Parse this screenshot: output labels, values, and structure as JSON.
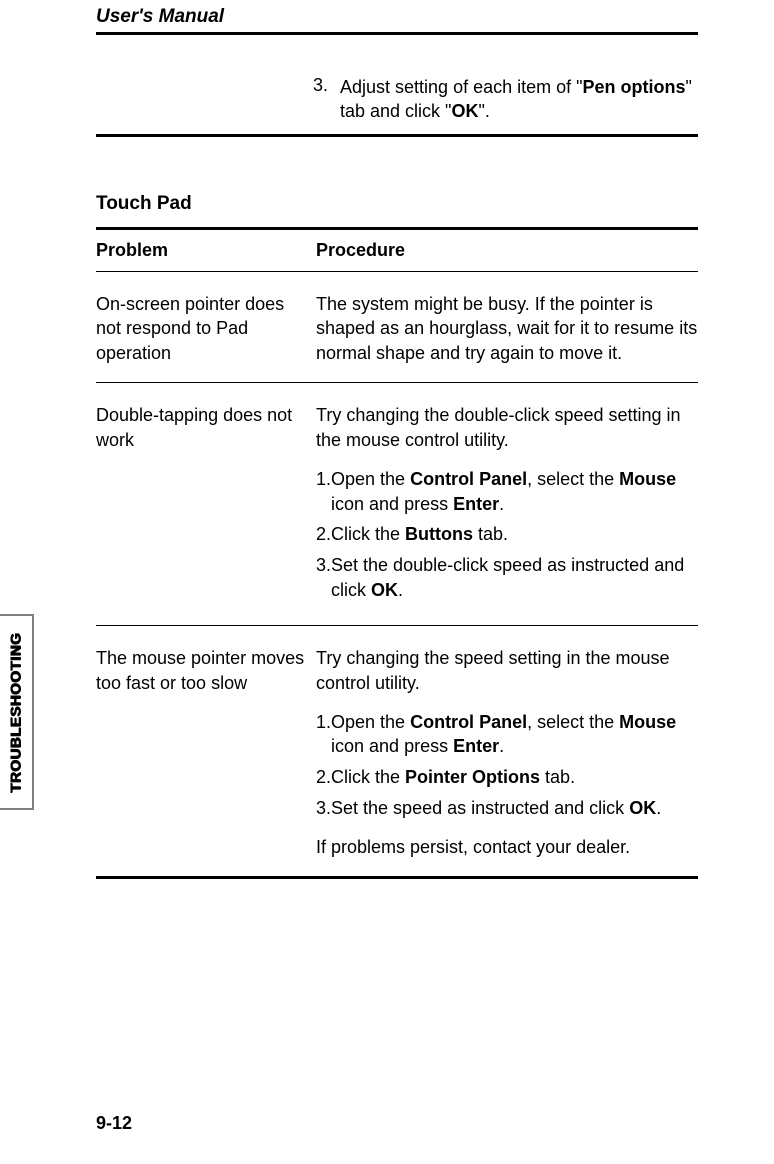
{
  "running_head": "User's Manual",
  "lead": {
    "num": "3.",
    "text_before": "Adjust setting of each item of \"",
    "bold1": "Pen options",
    "text_mid": "\" tab and click \"",
    "bold2": "OK",
    "text_after": "\"."
  },
  "section_title": "Touch Pad",
  "headers": {
    "problem": "Problem",
    "procedure": "Procedure"
  },
  "rows": [
    {
      "problem": "On-screen pointer does not respond to Pad operation",
      "procedure_intro": "The system might be busy. If the pointer is shaped as an hourglass, wait for it to resume its normal shape and try again to move it.",
      "steps": [],
      "trailing": ""
    },
    {
      "problem": "Double-tapping does not work",
      "procedure_intro": "Try changing the double-click speed setting in the mouse control utility.",
      "steps": [
        {
          "n": "1.",
          "segments": [
            {
              "t": "Open the "
            },
            {
              "t": "Control Panel",
              "b": true
            },
            {
              "t": ", select the "
            },
            {
              "t": "Mouse",
              "b": true
            },
            {
              "t": " icon and press "
            },
            {
              "t": "Enter",
              "b": true
            },
            {
              "t": "."
            }
          ]
        },
        {
          "n": "2.",
          "segments": [
            {
              "t": "Click the "
            },
            {
              "t": "Buttons",
              "b": true
            },
            {
              "t": " tab."
            }
          ]
        },
        {
          "n": "3.",
          "segments": [
            {
              "t": "Set the double-click speed as instructed and click "
            },
            {
              "t": "OK",
              "b": true
            },
            {
              "t": "."
            }
          ]
        }
      ],
      "trailing": ""
    },
    {
      "problem": "The mouse pointer moves too fast or too slow",
      "procedure_intro": "Try changing the speed setting in the mouse control utility.",
      "steps": [
        {
          "n": "1.",
          "segments": [
            {
              "t": "Open the "
            },
            {
              "t": "Control Panel",
              "b": true
            },
            {
              "t": ", select the "
            },
            {
              "t": "Mouse",
              "b": true
            },
            {
              "t": " icon and press "
            },
            {
              "t": "Enter",
              "b": true
            },
            {
              "t": "."
            }
          ]
        },
        {
          "n": "2.",
          "segments": [
            {
              "t": "Click the "
            },
            {
              "t": "Pointer Options",
              "b": true
            },
            {
              "t": " tab."
            }
          ]
        },
        {
          "n": "3.",
          "segments": [
            {
              "t": "Set the speed as instructed and click "
            },
            {
              "t": "OK",
              "b": true
            },
            {
              "t": "."
            }
          ]
        }
      ],
      "trailing": "If problems persist, contact your dealer."
    }
  ],
  "side_tab": "TROUBLESHOOTING",
  "page_number": "9-12"
}
